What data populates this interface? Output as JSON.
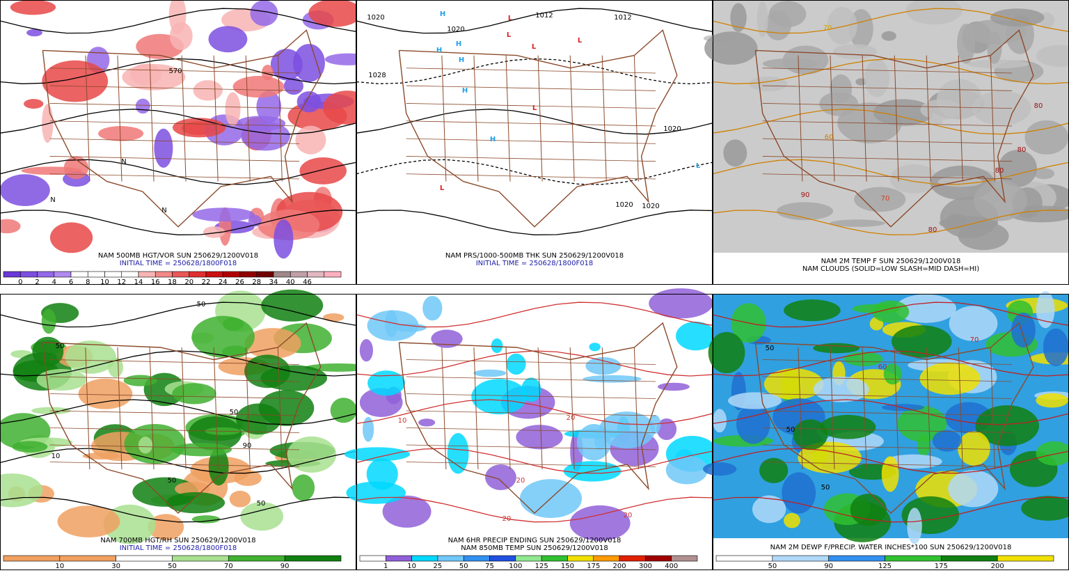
{
  "panels": [
    {
      "caption": [
        "NAM 500MB HGT/VOR SUN 250629/1200V018",
        "INITIAL TIME = 250628/1800F018"
      ],
      "caption_colors": [
        "#000000",
        "#1a1aa6"
      ],
      "map_labels": [
        "570",
        "N",
        "N",
        "N"
      ],
      "colorbar": {
        "colors": [
          "#6a38d8",
          "#7d4fe0",
          "#9468e8",
          "#b08af0",
          "#ffffff",
          "#ffffff",
          "#ffffff",
          "#ffffff",
          "#f8b4b4",
          "#f28888",
          "#ea5858",
          "#e03030",
          "#cc1010",
          "#b00000",
          "#900000",
          "#700000",
          "#a08888",
          "#c0a0a8",
          "#e0b8c0",
          "#ffb0c0"
        ],
        "labels": [
          0,
          2,
          4,
          6,
          8,
          10,
          12,
          14,
          16,
          18,
          20,
          22,
          24,
          26,
          28,
          34,
          40,
          46
        ]
      }
    },
    {
      "caption": [
        "NAM PRS/1000-500MB THK SUN 250629/1200V018",
        "INITIAL TIME = 250628/1800F018"
      ],
      "caption_colors": [
        "#000000",
        "#1a1aa6"
      ],
      "map_labels": [
        "1020",
        "1012",
        "1012",
        "1020",
        "1028",
        "1020",
        "1020",
        "1020",
        "H",
        "H",
        "H",
        "H",
        "H",
        "H",
        "L",
        "L",
        "L",
        "L",
        "L",
        "L",
        "L"
      ]
    },
    {
      "caption": [
        "NAM 2M TEMP F SUN 250629/1200V018",
        "NAM CLOUDS (SOLID=LOW SLASH=MID DASH=HI)"
      ],
      "caption_colors": [
        "#000000",
        "#000000"
      ],
      "map_labels": [
        "70",
        "80",
        "80",
        "80",
        "70",
        "60",
        "90",
        "80"
      ]
    },
    {
      "caption": [
        "NAM 700MB HGT/RH SUN 250629/1200V018",
        "INITIAL TIME = 250628/1800F018"
      ],
      "caption_colors": [
        "#000000",
        "#1a1aa6"
      ],
      "map_labels": [
        "50",
        "50",
        "50",
        "10",
        "50",
        "90",
        "50"
      ],
      "colorbar": {
        "colors": [
          "#f0a060",
          "#f0a060",
          "#ffffff",
          "#a8e090",
          "#40b030",
          "#108010"
        ],
        "labels": [
          10,
          30,
          50,
          70,
          90
        ]
      }
    },
    {
      "caption": [
        "NAM 6HR PRECIP ENDING SUN 250629/1200V018",
        "NAM 850MB TEMP SUN 250629/1200V018"
      ],
      "caption_colors": [
        "#000000",
        "#000000"
      ],
      "map_labels": [
        "20",
        "20",
        "20",
        "20",
        "10"
      ],
      "colorbar": {
        "colors": [
          "#ffffff",
          "#9060d8",
          "#00d8ff",
          "#70c8f8",
          "#3090f0",
          "#2050e0",
          "#90e890",
          "#30c030",
          "#f0e000",
          "#ff9a00",
          "#e02000",
          "#a00000",
          "#b09090"
        ],
        "labels": [
          1,
          10,
          25,
          50,
          75,
          100,
          125,
          150,
          175,
          200,
          300,
          400
        ]
      }
    },
    {
      "caption": [
        "NAM 2M DEWP F/PRECIP. WATER INCHES*100 SUN 250629/1200V018"
      ],
      "caption_colors": [
        "#000000"
      ],
      "map_labels": [
        "50",
        "50",
        "50",
        "60",
        "70"
      ],
      "colorbar": {
        "colors": [
          "#ffffff",
          "#b0d8f8",
          "#3090f0",
          "#30c030",
          "#108010",
          "#f0e000"
        ],
        "labels": [
          50,
          90,
          125,
          175,
          200
        ]
      }
    }
  ]
}
